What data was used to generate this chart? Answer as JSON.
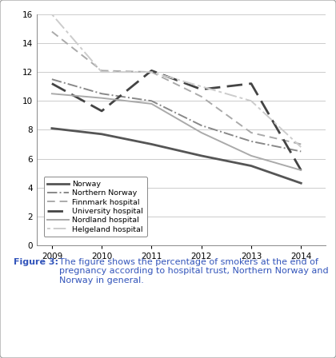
{
  "years": [
    2009,
    2010,
    2011,
    2012,
    2013,
    2014
  ],
  "series": [
    {
      "name": "Norway",
      "values": [
        8.1,
        7.7,
        7.0,
        6.2,
        5.5,
        4.3
      ],
      "color": "#555555",
      "linestyle": "-",
      "linewidth": 2.0,
      "dashes": null
    },
    {
      "name": "Northern Norway",
      "values": [
        11.5,
        10.5,
        10.0,
        8.3,
        7.2,
        6.5
      ],
      "color": "#888888",
      "linestyle": "-.",
      "linewidth": 1.4,
      "dashes": null
    },
    {
      "name": "Finnmark hospital",
      "values": [
        14.8,
        12.1,
        12.0,
        10.3,
        7.8,
        7.0
      ],
      "color": "#aaaaaa",
      "linestyle": "--",
      "linewidth": 1.4,
      "dashes": [
        5,
        3
      ]
    },
    {
      "name": "University hospital",
      "values": [
        11.2,
        9.3,
        12.1,
        10.8,
        11.2,
        5.2
      ],
      "color": "#444444",
      "linestyle": "--",
      "linewidth": 2.0,
      "dashes": [
        7,
        3
      ]
    },
    {
      "name": "Nordland hospital",
      "values": [
        10.5,
        10.2,
        9.8,
        7.8,
        6.2,
        5.2
      ],
      "color": "#aaaaaa",
      "linestyle": "-",
      "linewidth": 1.4,
      "dashes": null
    },
    {
      "name": "Helgeland hospital",
      "values": [
        16.0,
        12.0,
        12.0,
        11.0,
        10.0,
        6.8
      ],
      "color": "#cccccc",
      "linestyle": "--",
      "linewidth": 1.4,
      "dashes": [
        2,
        2,
        8,
        2
      ]
    }
  ],
  "ylim": [
    0,
    16
  ],
  "yticks": [
    0,
    2,
    4,
    6,
    8,
    10,
    12,
    14,
    16
  ],
  "xlim": [
    2008.7,
    2014.5
  ],
  "caption_bold": "Figure 3: ",
  "caption_text": "The figure shows the percentage of smokers at the end of pregnancy according to hospital trust, Northern Norway and Norway in general.",
  "caption_color": "#3355bb",
  "bg_color": "#ffffff",
  "grid_color": "#cccccc",
  "border_color": "#aaaaaa"
}
